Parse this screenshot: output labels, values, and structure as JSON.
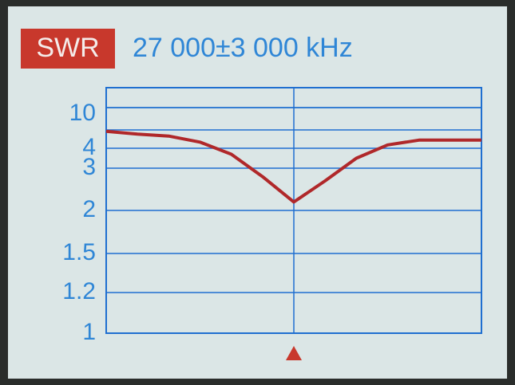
{
  "chart_data": {
    "type": "line",
    "badge": "SWR",
    "title": "27 000±3 000 kHz",
    "x": [
      24000,
      24500,
      25000,
      25500,
      26000,
      26500,
      27000,
      27500,
      28000,
      28500,
      29000,
      29500,
      30000
    ],
    "series": [
      {
        "color": "#b0282a",
        "values": [
          6.5,
          6.1,
          5.8,
          4.9,
          3.7,
          2.8,
          2.2,
          2.7,
          3.5,
          4.5,
          5.2,
          5.2,
          5.2
        ]
      }
    ],
    "xlim": [
      24000,
      30000
    ],
    "ylim": [
      1,
      10
    ],
    "yticks": [
      1,
      1.2,
      1.5,
      2,
      3,
      4,
      10
    ],
    "grid": true
  }
}
